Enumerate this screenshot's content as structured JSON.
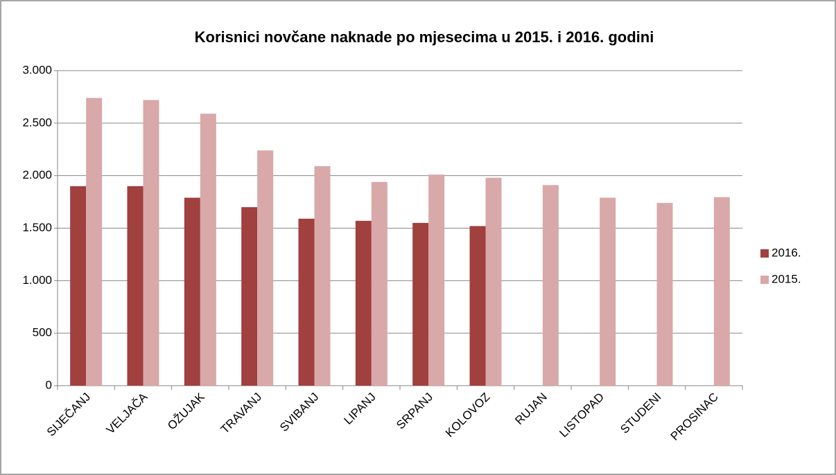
{
  "chart_data": {
    "type": "bar",
    "title": "Korisnici novčane naknade po mjesecima u 2015. i 2016. godini",
    "categories": [
      "SIJEČANJ",
      "VELJAČA",
      "OŽUJAK",
      "TRAVANJ",
      "SVIBANJ",
      "LIPANJ",
      "SRPANJ",
      "KOLOVOZ",
      "RUJAN",
      "LISTOPAD",
      "STUDENI",
      "PROSINAC"
    ],
    "series": [
      {
        "name": "2016.",
        "color": "#a0403f",
        "values": [
          1900,
          1900,
          1790,
          1700,
          1590,
          1570,
          1550,
          1520,
          null,
          null,
          null,
          null
        ]
      },
      {
        "name": "2015.",
        "color": "#d9a8a8",
        "values": [
          2740,
          2720,
          2590,
          2240,
          2090,
          1940,
          2010,
          1980,
          1910,
          1790,
          1740,
          1795
        ]
      }
    ],
    "ylim": [
      0,
      3000
    ],
    "yticks": [
      0,
      500,
      {
        "value": 1000,
        "label": "1.000"
      },
      {
        "value": 1500,
        "label": "1.500"
      },
      {
        "value": 2000,
        "label": "2.000"
      },
      {
        "value": 2500,
        "label": "2.500"
      },
      {
        "value": 3000,
        "label": "3.000"
      }
    ],
    "grid": true,
    "legend": "right"
  }
}
